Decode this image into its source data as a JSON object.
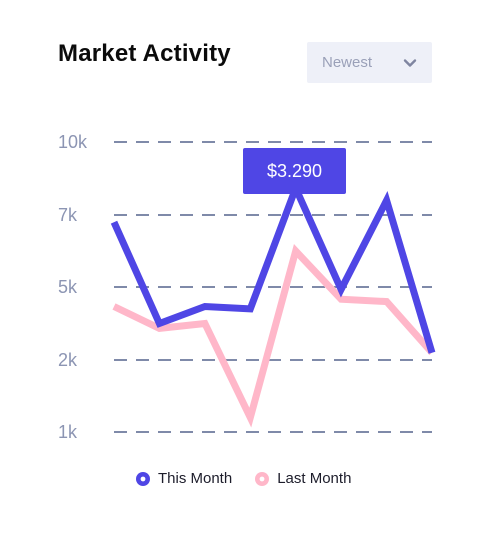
{
  "header": {
    "title": "Market Activity",
    "filter_label": "Newest"
  },
  "icons": {
    "dropdown": "chevron-down-icon",
    "legend_this_month": "circle-dot-icon",
    "legend_last_month": "circle-dot-icon"
  },
  "colors": {
    "this_month": "#4f46e5",
    "last_month": "#ffb7c9",
    "grid": "#7f8aa9",
    "axis_label": "#8c95b3",
    "tooltip_bg": "#4f46e5"
  },
  "tooltip": {
    "text": "$3.290"
  },
  "chart_data": {
    "type": "line",
    "title": "Market Activity",
    "xlabel": "",
    "ylabel": "",
    "y_ticks": [
      "10k",
      "7k",
      "5k",
      "2k",
      "1k"
    ],
    "grid": true,
    "legend_position": "bottom",
    "series": [
      {
        "name": "This Month",
        "values": [
          6.8,
          3.5,
          4.2,
          4.1,
          8.1,
          4.9,
          7.6,
          2.3
        ]
      },
      {
        "name": "Last Month",
        "values": [
          4.2,
          3.3,
          3.5,
          1.2,
          6.0,
          4.5,
          4.4,
          2.3
        ]
      }
    ]
  }
}
